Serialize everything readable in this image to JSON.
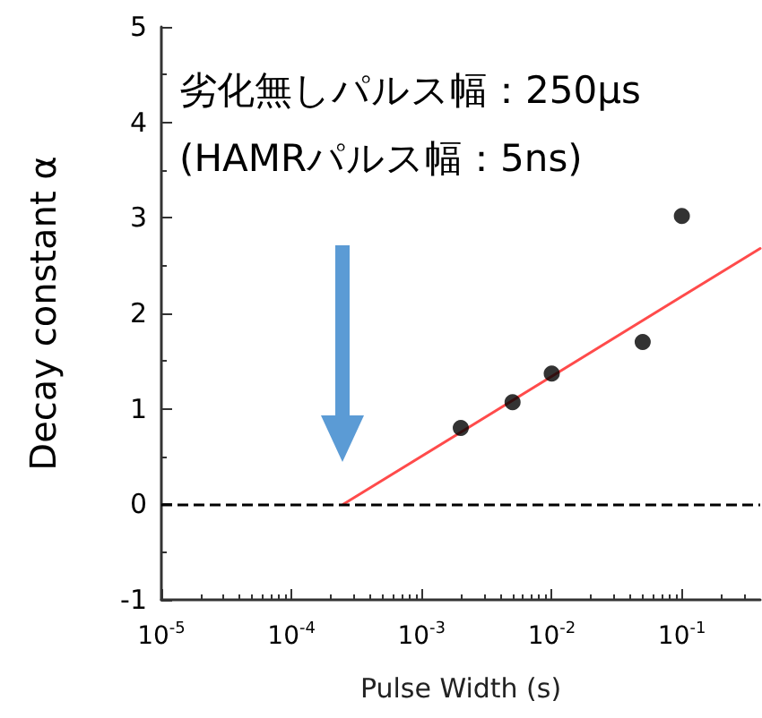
{
  "chart_data": {
    "type": "scatter",
    "xlabel": "Pulse Width (s)",
    "ylabel": "Decay constant α",
    "annotations": [
      "劣化無しパルス幅：250μs",
      "(HAMRパルス幅：5ns)"
    ],
    "log": "x",
    "xlim": [
      1e-05,
      0.4
    ],
    "ylim": [
      -1,
      5
    ],
    "xticks": [
      {
        "value": 1e-05,
        "label": "10$^{-5}$"
      },
      {
        "value": 0.0001,
        "label": "10$^{-4}$"
      },
      {
        "value": 0.001,
        "label": "10$^{-3}$"
      },
      {
        "value": 0.01,
        "label": "10$^{-2}$"
      },
      {
        "value": 0.1,
        "label": "10$^{-1}$"
      }
    ],
    "yticks": [
      -1,
      0,
      1,
      2,
      3,
      4,
      5
    ],
    "grid": false,
    "marker": "circle",
    "series": [
      {
        "type": "scatter",
        "color": "#000000",
        "x": [
          0.002,
          0.005,
          0.01,
          0.05,
          0.1
        ],
        "values": [
          0.8,
          1.07,
          1.37,
          1.7,
          3.02
        ]
      },
      {
        "type": "line",
        "color": "#ff4b4b",
        "marker": "none",
        "line_style": "solid",
        "x": [
          0.00025,
          0.4
        ],
        "values": [
          0,
          2.68
        ]
      }
    ],
    "ref_lines": [
      {
        "axis": "y",
        "value": 0,
        "color": "#000000",
        "line_style": "dashed"
      }
    ]
  }
}
